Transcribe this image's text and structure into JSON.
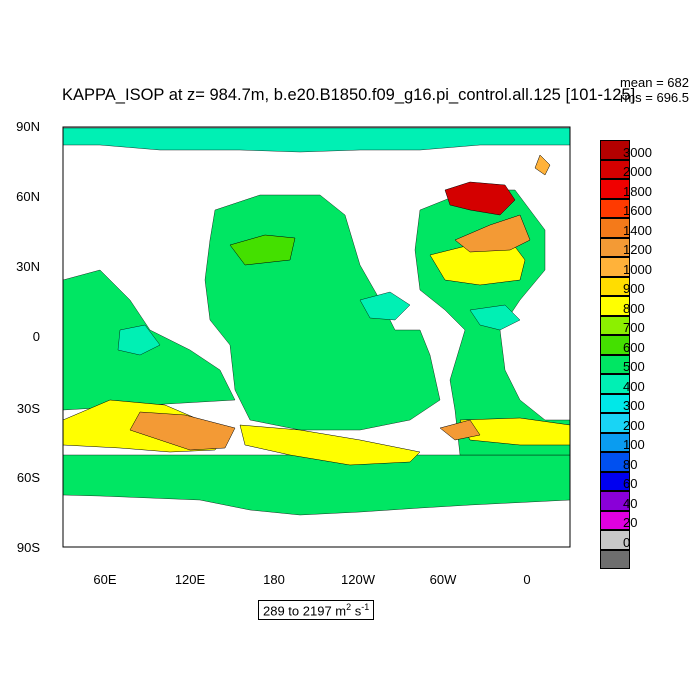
{
  "title": "KAPPA_ISOP at z= 984.7m, b.e20.B1850.f09_g16.pi_control.all.125 [101-125]",
  "stats": {
    "mean": "mean = 682",
    "rms": "rms = 696.5"
  },
  "range_label": {
    "text": "289 to 2197 m",
    "unit_exp": "2",
    "unit_s": " s",
    "unit_exp2": "-1"
  },
  "axes": {
    "lat_labels": [
      "90N",
      "60N",
      "30N",
      "0",
      "30S",
      "60S",
      "90S"
    ],
    "lon_labels": [
      "60E",
      "120E",
      "180",
      "120W",
      "60W",
      "0"
    ]
  },
  "colorbar": {
    "levels": [
      "3000",
      "2000",
      "1800",
      "1600",
      "1400",
      "1200",
      "1000",
      "900",
      "800",
      "700",
      "600",
      "500",
      "400",
      "300",
      "200",
      "100",
      "80",
      "60",
      "40",
      "20",
      "0"
    ],
    "colors": [
      "#b30000",
      "#d40000",
      "#f00000",
      "#ff3a00",
      "#f47a1a",
      "#f39a35",
      "#ffb23a",
      "#ffdd00",
      "#ffff00",
      "#8cf000",
      "#44e000",
      "#00e663",
      "#00f0b4",
      "#00e8e8",
      "#19d4f5",
      "#0a9cf0",
      "#0050f0",
      "#0000f0",
      "#8a00d8",
      "#e000e0",
      "#c8c8c8",
      "#6e6e6e"
    ]
  },
  "palette": {
    "ocean_main": "#00e663",
    "ocean_high": "#44e000",
    "ocean_yellow": "#ffff00",
    "ocean_orange": "#f39a35",
    "ocean_cyan": "#00f0b4",
    "land": "#ffffff"
  }
}
